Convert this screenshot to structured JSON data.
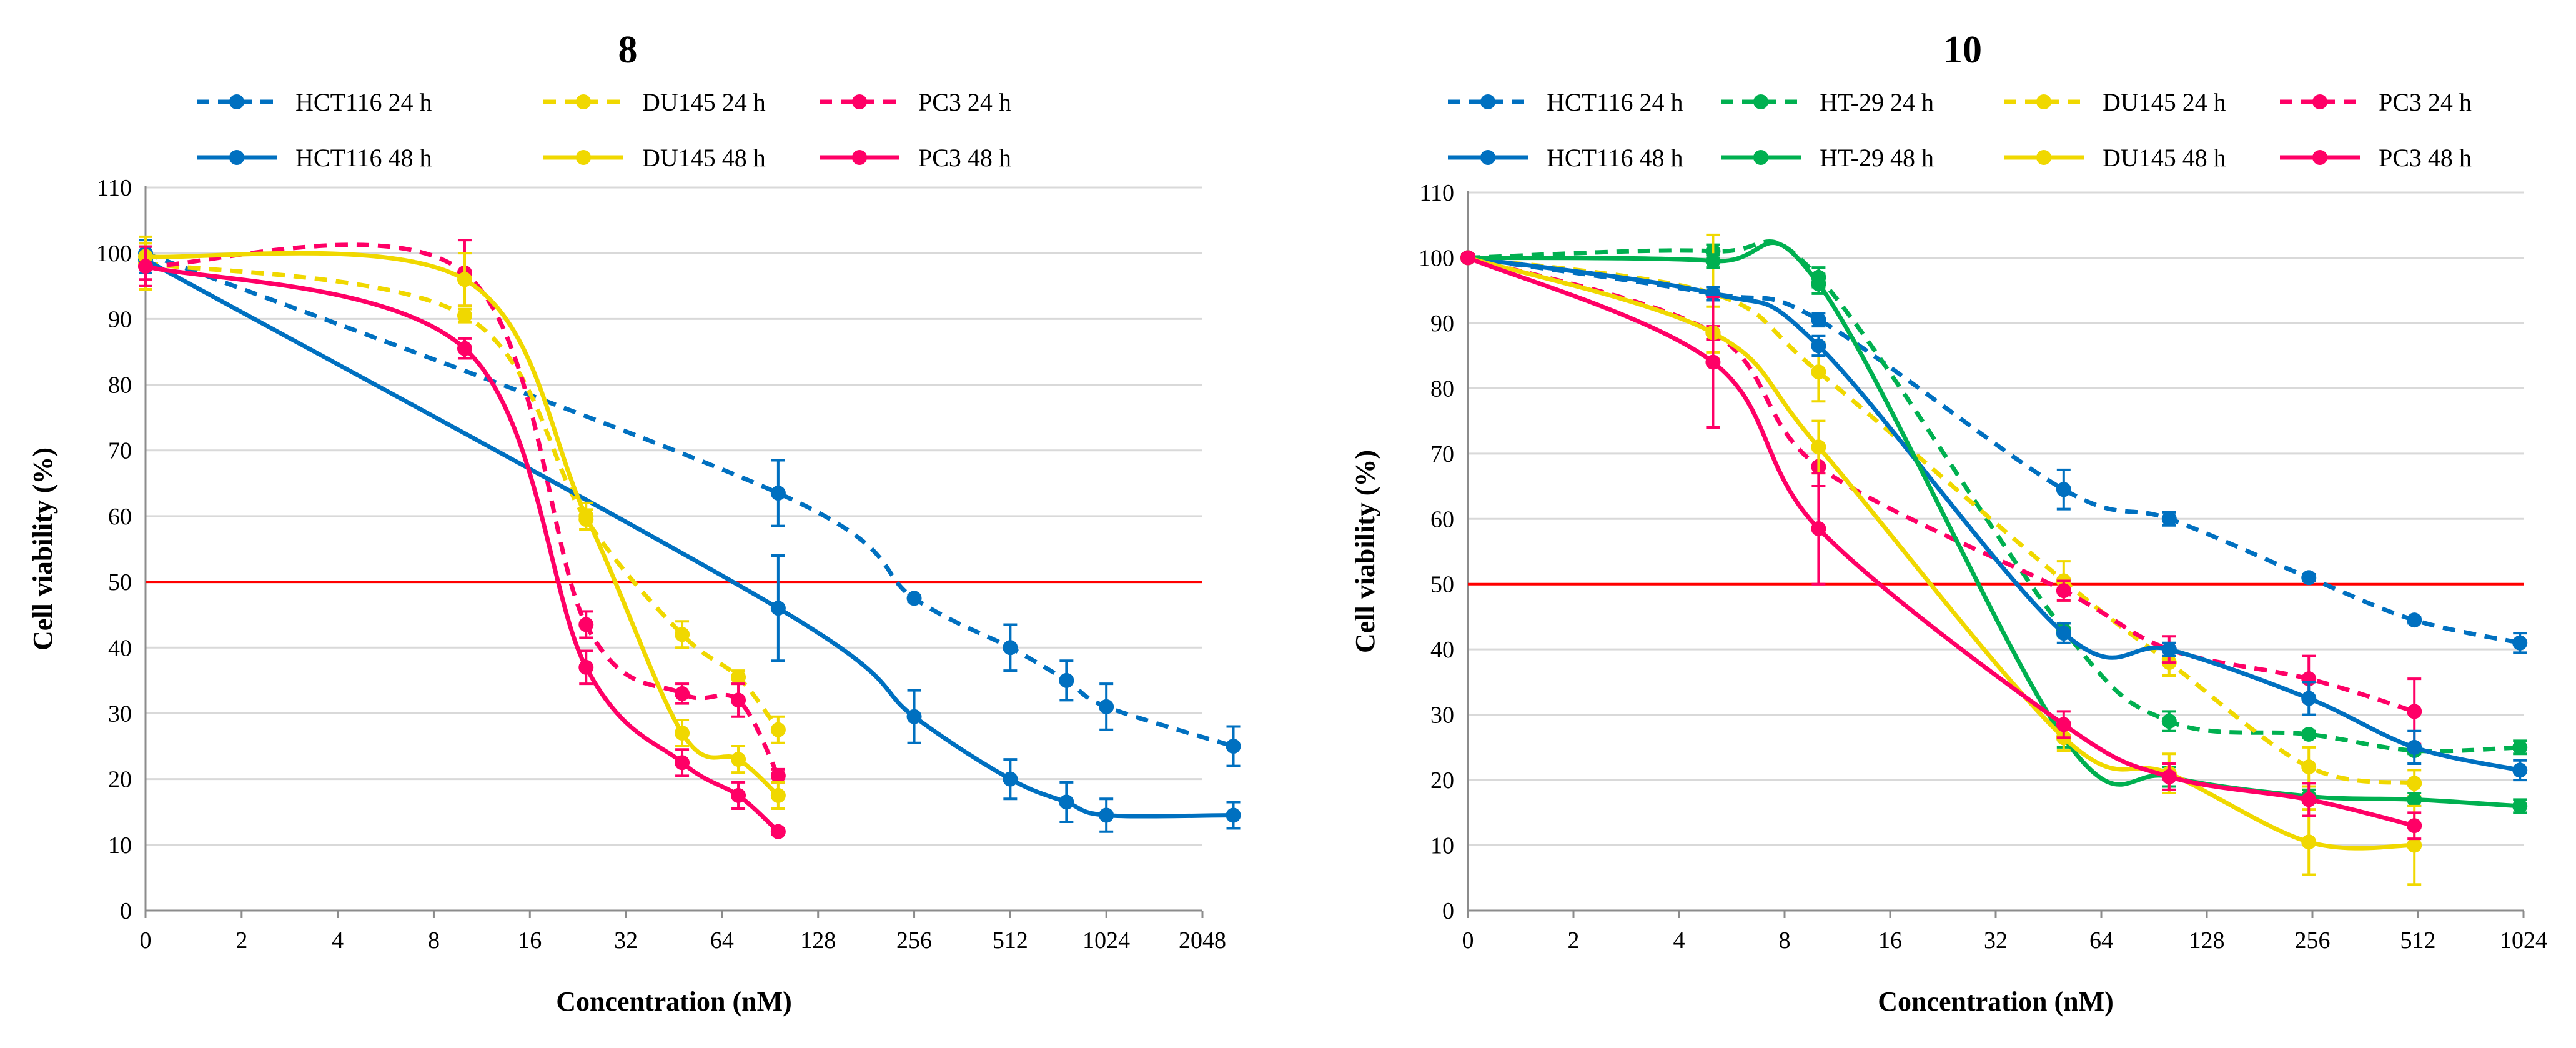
{
  "colors": {
    "HCT116": "#0070c0",
    "HT-29": "#00b050",
    "DU145": "#f0d800",
    "PC3": "#ff0066",
    "threshold": "#ff0000",
    "grid": "#d9d9d9"
  },
  "chart_data": [
    {
      "type": "line",
      "title": "8",
      "xlabel": "Concentration (nM)",
      "ylabel": "Cell viability (%)",
      "x_scale": "log2 with 0 at origin",
      "x_ticks": [
        0,
        2,
        4,
        8,
        16,
        32,
        64,
        128,
        256,
        512,
        1024,
        2048
      ],
      "x_tick_labels": [
        "0",
        "2",
        "4",
        "8",
        "16",
        "32",
        "64",
        "128",
        "256",
        "512",
        "1024",
        "2048"
      ],
      "y_ticks": [
        0,
        10,
        20,
        30,
        40,
        50,
        60,
        70,
        80,
        90,
        100,
        110
      ],
      "ylim": [
        0,
        110
      ],
      "grid": true,
      "threshold": 50,
      "legend_position": "top",
      "series": [
        {
          "name": "HCT116 24 h",
          "cell": "HCT116",
          "dashed": true,
          "x": [
            0,
            96,
            256,
            512,
            768,
            1024,
            2560
          ],
          "y": [
            100,
            63.5,
            47.5,
            40,
            35,
            31,
            25
          ],
          "err": [
            2,
            5,
            0.5,
            3.5,
            3,
            3.5,
            3
          ]
        },
        {
          "name": "DU145 24 h",
          "cell": "DU145",
          "dashed": true,
          "x": [
            0,
            10,
            24,
            48,
            72,
            96
          ],
          "y": [
            98.5,
            90.5,
            59.5,
            42,
            35.5,
            27.5
          ],
          "err": [
            4,
            1,
            1.5,
            2,
            1,
            2
          ]
        },
        {
          "name": "PC3 24 h",
          "cell": "PC3",
          "dashed": true,
          "x": [
            0,
            10,
            24,
            48,
            72,
            96
          ],
          "y": [
            98,
            97,
            43.5,
            33,
            32,
            20.5
          ],
          "err": [
            2,
            5,
            2,
            1.5,
            2.5,
            1
          ]
        },
        {
          "name": "HCT116 48 h",
          "cell": "HCT116",
          "dashed": false,
          "x": [
            0,
            96,
            256,
            512,
            768,
            1024,
            2560
          ],
          "y": [
            99,
            46,
            29.5,
            20,
            16.5,
            14.5,
            14.5
          ],
          "err": [
            2,
            8,
            4,
            3,
            3,
            2.5,
            2
          ]
        },
        {
          "name": "DU145 48 h",
          "cell": "DU145",
          "dashed": false,
          "x": [
            0,
            10,
            24,
            48,
            72,
            96
          ],
          "y": [
            99.5,
            96,
            60,
            27,
            23,
            17.5
          ],
          "err": [
            2,
            4,
            2,
            2,
            2,
            2
          ]
        },
        {
          "name": "PC3 48 h",
          "cell": "PC3",
          "dashed": false,
          "x": [
            0,
            10,
            24,
            48,
            72,
            96
          ],
          "y": [
            98,
            85.5,
            37,
            22.5,
            17.5,
            12
          ],
          "err": [
            3,
            1.5,
            2.5,
            2,
            2,
            0.5
          ]
        }
      ]
    },
    {
      "type": "line",
      "title": "10",
      "xlabel": "Concentration (nM)",
      "ylabel": "Cell viability (%)",
      "x_scale": "log2 with 0 at origin",
      "x_ticks": [
        0,
        2,
        4,
        8,
        16,
        32,
        64,
        128,
        256,
        512,
        1024
      ],
      "x_tick_labels": [
        "0",
        "2",
        "4",
        "8",
        "16",
        "32",
        "64",
        "128",
        "256",
        "512",
        "1024"
      ],
      "y_ticks": [
        0,
        10,
        20,
        30,
        40,
        50,
        60,
        70,
        80,
        90,
        100,
        110
      ],
      "ylim": [
        0,
        110
      ],
      "grid": true,
      "threshold": 50,
      "legend_position": "top",
      "series": [
        {
          "name": "HCT116 24 h",
          "cell": "HCT116",
          "dashed": true,
          "x": [
            0,
            5,
            10,
            50,
            100,
            250,
            500,
            1000
          ],
          "y": [
            100,
            94.5,
            90.5,
            64.5,
            60,
            51,
            44.5,
            41
          ],
          "err": [
            0.5,
            1,
            1,
            3,
            1,
            0.5,
            0.5,
            1.5
          ]
        },
        {
          "name": "HT-29 24 h",
          "cell": "HT-29",
          "dashed": true,
          "x": [
            0,
            5,
            10,
            50,
            100,
            250,
            500,
            1000
          ],
          "y": [
            100,
            101,
            97,
            43,
            29,
            27,
            24.5,
            25
          ],
          "err": [
            0.5,
            1,
            1.5,
            1,
            1.5,
            0.5,
            0.5,
            1
          ]
        },
        {
          "name": "DU145 24 h",
          "cell": "DU145",
          "dashed": true,
          "x": [
            0,
            5,
            10,
            50,
            100,
            250,
            500
          ],
          "y": [
            100,
            94.5,
            82.5,
            50.5,
            38,
            22,
            19.5
          ],
          "err": [
            0.5,
            9,
            4.5,
            3,
            2,
            3,
            2
          ]
        },
        {
          "name": "PC3 24 h",
          "cell": "PC3",
          "dashed": true,
          "x": [
            0,
            5,
            10,
            50,
            100,
            250,
            500
          ],
          "y": [
            100,
            88.5,
            68,
            49,
            40,
            35.5,
            30.5
          ],
          "err": [
            0.5,
            1,
            3,
            1.5,
            2,
            3.5,
            5
          ]
        },
        {
          "name": "HCT116 48 h",
          "cell": "HCT116",
          "dashed": false,
          "x": [
            0,
            5,
            10,
            50,
            100,
            250,
            500,
            1000
          ],
          "y": [
            100,
            94.5,
            86.5,
            42.5,
            40,
            32.5,
            25,
            21.5
          ],
          "err": [
            0.5,
            1,
            1.5,
            1.5,
            1,
            2.5,
            2.5,
            1.5
          ]
        },
        {
          "name": "HT-29 48 h",
          "cell": "HT-29",
          "dashed": false,
          "x": [
            0,
            5,
            10,
            50,
            100,
            250,
            500,
            1000
          ],
          "y": [
            100,
            99.5,
            96,
            26.5,
            20.5,
            17.5,
            17,
            16
          ],
          "err": [
            0.5,
            1,
            1.5,
            1.5,
            1.5,
            1,
            1,
            1
          ]
        },
        {
          "name": "DU145 48 h",
          "cell": "DU145",
          "dashed": false,
          "x": [
            0,
            5,
            10,
            50,
            100,
            250,
            500
          ],
          "y": [
            100,
            88.5,
            71,
            26.5,
            21,
            10.5,
            10
          ],
          "err": [
            0.5,
            4,
            4,
            2,
            3,
            5,
            6
          ]
        },
        {
          "name": "PC3 48 h",
          "cell": "PC3",
          "dashed": false,
          "x": [
            0,
            5,
            10,
            50,
            100,
            250,
            500
          ],
          "y": [
            100,
            84,
            58.5,
            28.5,
            20.5,
            17,
            13
          ],
          "err": [
            0.5,
            10,
            8.5,
            2,
            2,
            2.5,
            2
          ]
        }
      ]
    }
  ]
}
